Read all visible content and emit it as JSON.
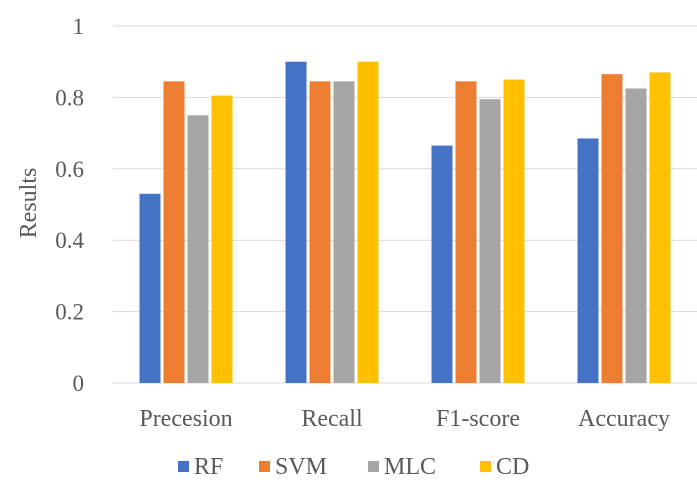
{
  "chart_data": {
    "type": "bar",
    "categories": [
      "Precesion",
      "Recall",
      "F1-score",
      "Accuracy"
    ],
    "series": [
      {
        "name": "RF",
        "color": "#4472c4",
        "values": [
          0.53,
          0.9,
          0.665,
          0.685
        ]
      },
      {
        "name": "SVM",
        "color": "#ed7d31",
        "values": [
          0.845,
          0.845,
          0.845,
          0.865
        ]
      },
      {
        "name": "MLC",
        "color": "#a5a5a5",
        "values": [
          0.75,
          0.845,
          0.795,
          0.825
        ]
      },
      {
        "name": "CD",
        "color": "#ffc000",
        "values": [
          0.805,
          0.9,
          0.85,
          0.87
        ]
      }
    ],
    "title": "",
    "xlabel": "",
    "ylabel": "Results",
    "ylim": [
      0,
      1
    ],
    "yticks": [
      "0",
      "0.2",
      "0.4",
      "0.6",
      "0.8",
      "1"
    ],
    "grid": true,
    "legend_position": "bottom"
  }
}
